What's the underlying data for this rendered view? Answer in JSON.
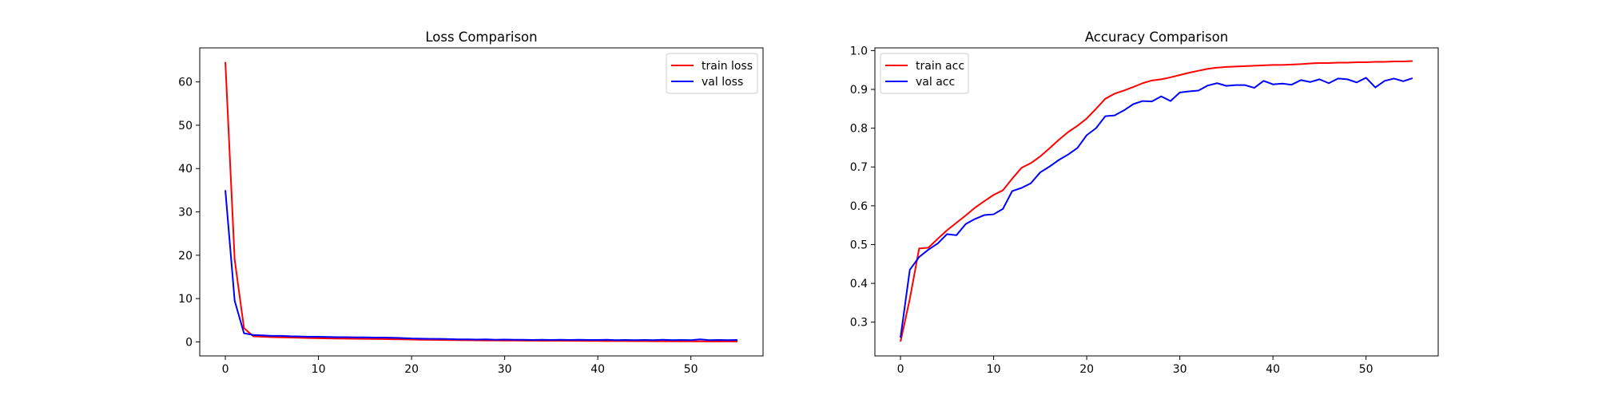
{
  "chart_data": [
    {
      "type": "line",
      "title": "Loss Comparison",
      "xlabel": "",
      "ylabel": "",
      "xlim": [
        -2.75,
        57.75
      ],
      "ylim": [
        -3.23,
        67.85
      ],
      "xticks": [
        0,
        10,
        20,
        30,
        40,
        50
      ],
      "yticks": [
        0,
        10,
        20,
        30,
        40,
        50,
        60
      ],
      "grid": false,
      "legend": "top-right",
      "series": [
        {
          "name": "train loss",
          "color": "#ff0000",
          "x": [
            0,
            1,
            2,
            3,
            4,
            5,
            6,
            7,
            8,
            9,
            10,
            11,
            12,
            13,
            14,
            15,
            16,
            17,
            18,
            19,
            20,
            21,
            22,
            23,
            24,
            25,
            26,
            27,
            28,
            29,
            30,
            31,
            32,
            33,
            34,
            35,
            36,
            37,
            38,
            39,
            40,
            41,
            42,
            43,
            44,
            45,
            46,
            47,
            48,
            49,
            50,
            51,
            52,
            53,
            54,
            55
          ],
          "values": [
            64.6,
            19.0,
            3.2,
            1.3,
            1.2,
            1.1,
            1.05,
            1.0,
            0.95,
            0.9,
            0.85,
            0.8,
            0.78,
            0.75,
            0.72,
            0.7,
            0.68,
            0.65,
            0.62,
            0.6,
            0.55,
            0.5,
            0.48,
            0.45,
            0.42,
            0.4,
            0.38,
            0.36,
            0.34,
            0.33,
            0.32,
            0.31,
            0.3,
            0.29,
            0.28,
            0.27,
            0.26,
            0.25,
            0.24,
            0.23,
            0.22,
            0.21,
            0.2,
            0.19,
            0.18,
            0.17,
            0.16,
            0.15,
            0.14,
            0.13,
            0.12,
            0.12,
            0.11,
            0.11,
            0.1,
            0.1
          ]
        },
        {
          "name": "val loss",
          "color": "#0000ff",
          "x": [
            0,
            1,
            2,
            3,
            4,
            5,
            6,
            7,
            8,
            9,
            10,
            11,
            12,
            13,
            14,
            15,
            16,
            17,
            18,
            19,
            20,
            21,
            22,
            23,
            24,
            25,
            26,
            27,
            28,
            29,
            30,
            31,
            32,
            33,
            34,
            35,
            36,
            37,
            38,
            39,
            40,
            41,
            42,
            43,
            44,
            45,
            46,
            47,
            48,
            49,
            50,
            51,
            52,
            53,
            54,
            55
          ],
          "values": [
            35.0,
            9.5,
            2.0,
            1.6,
            1.5,
            1.4,
            1.4,
            1.3,
            1.25,
            1.2,
            1.2,
            1.15,
            1.1,
            1.1,
            1.05,
            1.05,
            1.0,
            1.0,
            0.95,
            0.9,
            0.8,
            0.75,
            0.7,
            0.7,
            0.65,
            0.6,
            0.6,
            0.55,
            0.6,
            0.5,
            0.55,
            0.5,
            0.5,
            0.45,
            0.5,
            0.45,
            0.5,
            0.45,
            0.5,
            0.45,
            0.45,
            0.5,
            0.4,
            0.45,
            0.4,
            0.45,
            0.4,
            0.5,
            0.4,
            0.45,
            0.4,
            0.6,
            0.4,
            0.45,
            0.4,
            0.45
          ]
        }
      ]
    },
    {
      "type": "line",
      "title": "Accuracy Comparison",
      "xlabel": "",
      "ylabel": "",
      "xlim": [
        -2.75,
        57.75
      ],
      "ylim": [
        0.213,
        1.007
      ],
      "xticks": [
        0,
        10,
        20,
        30,
        40,
        50
      ],
      "yticks": [
        0.3,
        0.4,
        0.5,
        0.6,
        0.7,
        0.8,
        0.9,
        1.0
      ],
      "ytick_labels": [
        "0.3",
        "0.4",
        "0.5",
        "0.6",
        "0.7",
        "0.8",
        "0.9",
        "1.0"
      ],
      "grid": false,
      "legend": "top-left",
      "series": [
        {
          "name": "train acc",
          "color": "#ff0000",
          "x": [
            0,
            1,
            2,
            3,
            4,
            5,
            6,
            7,
            8,
            9,
            10,
            11,
            12,
            13,
            14,
            15,
            16,
            17,
            18,
            19,
            20,
            21,
            22,
            23,
            24,
            25,
            26,
            27,
            28,
            29,
            30,
            31,
            32,
            33,
            34,
            35,
            36,
            37,
            38,
            39,
            40,
            41,
            42,
            43,
            44,
            45,
            46,
            47,
            48,
            49,
            50,
            51,
            52,
            53,
            54,
            55
          ],
          "values": [
            0.25,
            0.36,
            0.49,
            0.492,
            0.515,
            0.537,
            0.556,
            0.575,
            0.595,
            0.612,
            0.628,
            0.64,
            0.67,
            0.698,
            0.71,
            0.727,
            0.748,
            0.77,
            0.79,
            0.806,
            0.825,
            0.85,
            0.876,
            0.889,
            0.897,
            0.906,
            0.916,
            0.923,
            0.926,
            0.931,
            0.937,
            0.943,
            0.948,
            0.953,
            0.956,
            0.958,
            0.959,
            0.96,
            0.961,
            0.962,
            0.963,
            0.963,
            0.964,
            0.965,
            0.967,
            0.968,
            0.968,
            0.969,
            0.969,
            0.97,
            0.97,
            0.971,
            0.971,
            0.972,
            0.972,
            0.973
          ]
        },
        {
          "name": "val acc",
          "color": "#0000ff",
          "x": [
            0,
            1,
            2,
            3,
            4,
            5,
            6,
            7,
            8,
            9,
            10,
            11,
            12,
            13,
            14,
            15,
            16,
            17,
            18,
            19,
            20,
            21,
            22,
            23,
            24,
            25,
            26,
            27,
            28,
            29,
            30,
            31,
            32,
            33,
            34,
            35,
            36,
            37,
            38,
            39,
            40,
            41,
            42,
            43,
            44,
            45,
            46,
            47,
            48,
            49,
            50,
            51,
            52,
            53,
            54,
            55
          ],
          "values": [
            0.26,
            0.435,
            0.468,
            0.487,
            0.503,
            0.527,
            0.524,
            0.553,
            0.566,
            0.576,
            0.578,
            0.592,
            0.638,
            0.646,
            0.658,
            0.686,
            0.701,
            0.718,
            0.732,
            0.749,
            0.782,
            0.8,
            0.831,
            0.833,
            0.846,
            0.862,
            0.87,
            0.869,
            0.882,
            0.87,
            0.892,
            0.895,
            0.897,
            0.91,
            0.916,
            0.909,
            0.911,
            0.911,
            0.904,
            0.922,
            0.913,
            0.915,
            0.912,
            0.924,
            0.919,
            0.926,
            0.916,
            0.928,
            0.926,
            0.918,
            0.93,
            0.905,
            0.922,
            0.928,
            0.921,
            0.929
          ]
        }
      ]
    }
  ]
}
